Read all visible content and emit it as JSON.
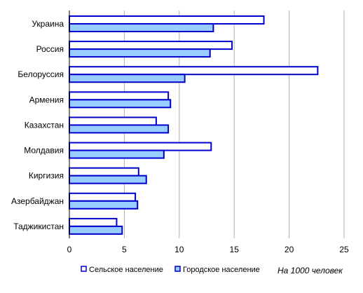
{
  "chart_data": {
    "type": "bar",
    "orientation": "horizontal",
    "categories": [
      "Украина",
      "Россия",
      "Белоруссия",
      "Армения",
      "Казахстан",
      "Молдавия",
      "Киргизия",
      "Азербайджан",
      "Таджикистан"
    ],
    "series": [
      {
        "name": "Сельское население",
        "values": [
          17.7,
          14.8,
          22.6,
          9.0,
          7.9,
          12.9,
          6.3,
          6.0,
          4.3
        ],
        "fill": "#ffffff",
        "stroke": "#0000cc"
      },
      {
        "name": "Городское население",
        "values": [
          13.1,
          12.8,
          10.5,
          9.2,
          9.0,
          8.6,
          7.0,
          6.2,
          4.8
        ],
        "fill": "#99ccff",
        "stroke": "#0000cc"
      }
    ],
    "xlim": [
      0,
      25
    ],
    "xticks": [
      0,
      5,
      10,
      15,
      20,
      25
    ],
    "grid": true,
    "legend_placement": "bottom",
    "unit_note": "На 1000 человек"
  }
}
